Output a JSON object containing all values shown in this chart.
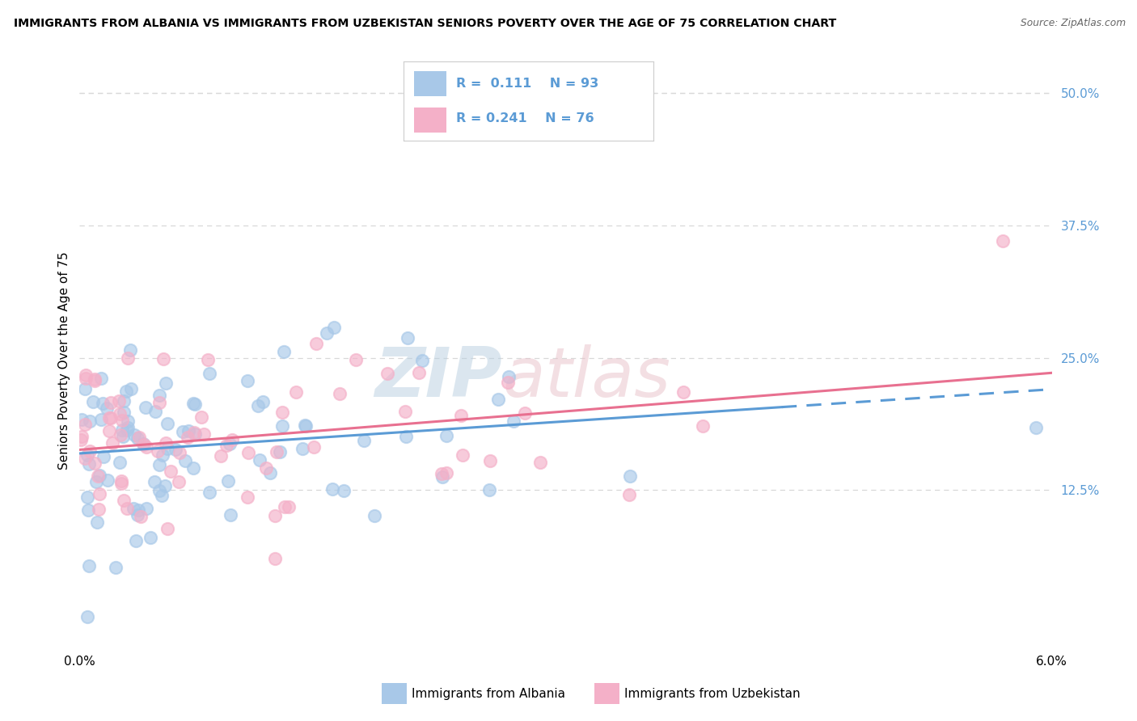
{
  "title": "IMMIGRANTS FROM ALBANIA VS IMMIGRANTS FROM UZBEKISTAN SENIORS POVERTY OVER THE AGE OF 75 CORRELATION CHART",
  "source": "Source: ZipAtlas.com",
  "ylabel": "Seniors Poverty Over the Age of 75",
  "xlabel_albania": "Immigrants from Albania",
  "xlabel_uzbekistan": "Immigrants from Uzbekistan",
  "albania_R": 0.111,
  "albania_N": 93,
  "uzbekistan_R": 0.241,
  "uzbekistan_N": 76,
  "albania_color": "#a8c8e8",
  "uzbekistan_color": "#f4b0c8",
  "albania_line_color": "#5b9bd5",
  "uzbekistan_line_color": "#e87090",
  "ytick_color": "#5b9bd5",
  "xlim": [
    0.0,
    0.06
  ],
  "ylim": [
    -0.025,
    0.52
  ],
  "ytick_positions": [
    0.125,
    0.25,
    0.375,
    0.5
  ],
  "ytick_labels": [
    "12.5%",
    "25.0%",
    "37.5%",
    "50.0%"
  ],
  "background_color": "#ffffff",
  "grid_color": "#d8d8d8",
  "title_fontsize": 10.5,
  "albania_seed": 77,
  "uzbekistan_seed": 88
}
